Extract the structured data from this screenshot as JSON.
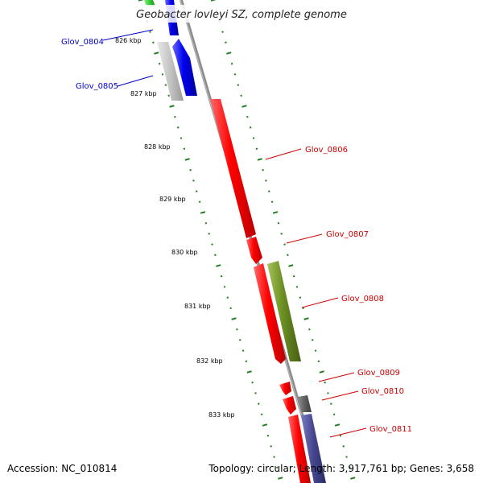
{
  "title": "Geobacter lovleyi SZ, complete genome",
  "footer": {
    "accession": "Accession: NC_010814",
    "summary": "Topology: circular; Length: 3,917,761 bp; Genes: 3,658"
  },
  "colors": {
    "backbone": "#8a8a8a",
    "tick": "#1e7d1e",
    "label_blue": "#0000cc",
    "label_red": "#cc0000",
    "gene_red": "#ff1010",
    "gene_blue": "#1a1aee",
    "gene_olive": "#6b8f23",
    "gene_gray": "#bdbdbd",
    "gene_dark": "#666666",
    "gene_navy": "#45458f",
    "gene_green": "#33cc33"
  },
  "kbp_labels": [
    "826 kbp",
    "827 kbp",
    "828 kbp",
    "829 kbp",
    "830 kbp",
    "831 kbp",
    "832 kbp",
    "833 kbp"
  ],
  "gene_labels": [
    {
      "text": "Glov_0804",
      "color": "blue"
    },
    {
      "text": "Glov_0805",
      "color": "blue"
    },
    {
      "text": "Glov_0806",
      "color": "red"
    },
    {
      "text": "Glov_0807",
      "color": "red"
    },
    {
      "text": "Glov_0808",
      "color": "red"
    },
    {
      "text": "Glov_0809",
      "color": "red"
    },
    {
      "text": "Glov_0810",
      "color": "red"
    },
    {
      "text": "Glov_0811",
      "color": "red"
    }
  ]
}
